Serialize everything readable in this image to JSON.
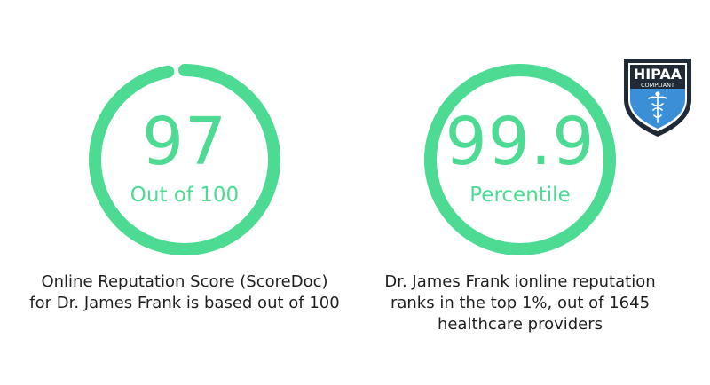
{
  "score": {
    "value": "97",
    "subtitle": "Out of 100",
    "caption_line1": "Online Reputation Score (ScoreDoc)",
    "caption_line2": "for Dr. James Frank is based out of 100",
    "fill_fraction": 0.97
  },
  "percentile": {
    "value": "99.9",
    "subtitle": "Percentile",
    "caption_line1": "Dr. James Frank ionline reputation",
    "caption_line2": "ranks in the top 1%, out of 1645",
    "caption_line3": "healthcare providers",
    "fill_fraction": 1.0
  },
  "badge": {
    "title": "HIPAA",
    "subtitle": "COMPLIANT",
    "icon": "caduceus-shield-icon"
  },
  "colors": {
    "accent": "#4ddb94",
    "text": "#1f1f1f",
    "badge_dark": "#1f2a36",
    "badge_blue": "#3b8fd6"
  }
}
